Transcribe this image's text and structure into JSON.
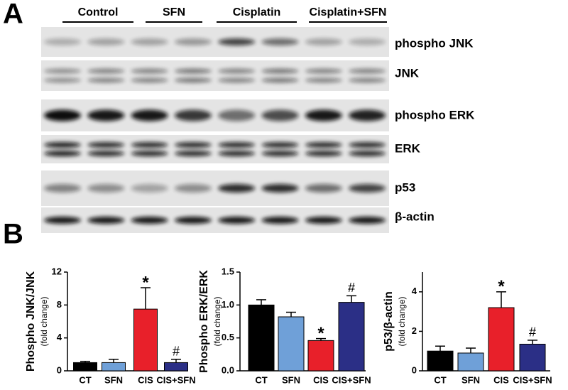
{
  "panel_labels": [
    "A",
    "B"
  ],
  "blot": {
    "groups": [
      "Control",
      "SFN",
      "Cisplatin",
      "Cisplatin+SFN"
    ],
    "bands": [
      "phospho JNK",
      "JNK",
      "phospho ERK",
      "ERK",
      "p53",
      "β-actin"
    ]
  },
  "chart_data": [
    {
      "type": "bar",
      "y_label": "Phospho JNK/JNK",
      "y_label_sub": "(fold change)",
      "categories": [
        "CT",
        "SFN",
        "CIS",
        "CIS+SFN"
      ],
      "values": [
        1.0,
        1.0,
        7.5,
        1.0
      ],
      "errors": [
        0.15,
        0.4,
        2.6,
        0.4
      ],
      "colors": [
        "#000000",
        "#6fa0d8",
        "#e8202a",
        "#2b2f86"
      ],
      "value_annotations": [
        null,
        null,
        "*",
        "#"
      ],
      "ylim": [
        0,
        12
      ],
      "yticks": [
        0,
        4,
        8,
        12
      ]
    },
    {
      "type": "bar",
      "y_label": "Phospho ERK/ERK",
      "y_label_sub": "(fold change)",
      "categories": [
        "CT",
        "SFN",
        "CIS",
        "CIS+SFN"
      ],
      "values": [
        1.0,
        0.82,
        0.46,
        1.04
      ],
      "errors": [
        0.08,
        0.07,
        0.03,
        0.1
      ],
      "colors": [
        "#000000",
        "#6fa0d8",
        "#e8202a",
        "#2b2f86"
      ],
      "value_annotations": [
        null,
        null,
        "*",
        "#"
      ],
      "ylim": [
        0,
        1.5
      ],
      "yticks": [
        {
          "value": 0,
          "label": "0.0"
        },
        {
          "value": 0.5,
          "label": "0.5"
        },
        {
          "value": 1,
          "label": "1.0"
        },
        {
          "value": 1.5,
          "label": "1.5"
        }
      ]
    },
    {
      "type": "bar",
      "y_label": "p53/β-actin",
      "y_label_sub": "(fold change)",
      "categories": [
        "CT",
        "SFN",
        "CIS",
        "CIS+SFN"
      ],
      "values": [
        1.0,
        0.9,
        3.2,
        1.35
      ],
      "errors": [
        0.25,
        0.25,
        0.8,
        0.2
      ],
      "colors": [
        "#000000",
        "#6fa0d8",
        "#e8202a",
        "#2b2f86"
      ],
      "value_annotations": [
        null,
        null,
        "*",
        "#"
      ],
      "ylim": [
        0,
        5
      ],
      "yticks": [
        0,
        2,
        4
      ]
    }
  ]
}
